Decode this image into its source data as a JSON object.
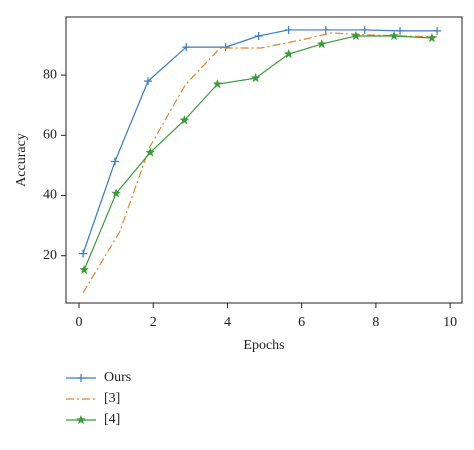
{
  "chart_data": {
    "type": "line",
    "xlabel": "Epochs",
    "ylabel": "Accuracy",
    "xlim": [
      -0.35,
      10.32
    ],
    "ylim": [
      4.3,
      99.3
    ],
    "xticks": [
      0,
      2,
      4,
      6,
      8,
      10
    ],
    "yticks": [
      20,
      40,
      60,
      80
    ],
    "legend": "below",
    "series": [
      {
        "name": "Ours",
        "color": "#3a7dc0",
        "style": "solid",
        "marker": "plus",
        "x": [
          0.11,
          0.97,
          1.86,
          2.89,
          3.95,
          4.84,
          5.65,
          6.65,
          7.7,
          8.65,
          9.65
        ],
        "values": [
          20.7,
          51.3,
          78,
          89.3,
          89.3,
          93,
          95,
          95,
          95,
          94.7,
          94.7
        ]
      },
      {
        "name": "[3]",
        "color": "#e8822f",
        "style": "dashdot",
        "marker": "none",
        "x": [
          0.11,
          1.1,
          1.9,
          2.86,
          3.8,
          4.9,
          6,
          6.8,
          7.9,
          8.7,
          9.65
        ],
        "values": [
          7.7,
          28,
          56,
          76.7,
          89,
          89,
          91.7,
          94,
          93.3,
          93,
          92.7
        ]
      },
      {
        "name": "[4]",
        "color": "#3a9a3a",
        "style": "solid",
        "marker": "star",
        "x": [
          0.14,
          1,
          1.92,
          2.84,
          3.73,
          4.76,
          5.65,
          6.54,
          7.46,
          8.49,
          9.51
        ],
        "values": [
          15.3,
          40.7,
          54.3,
          65,
          77,
          79,
          87,
          90.3,
          93,
          93,
          92.3
        ]
      }
    ]
  }
}
